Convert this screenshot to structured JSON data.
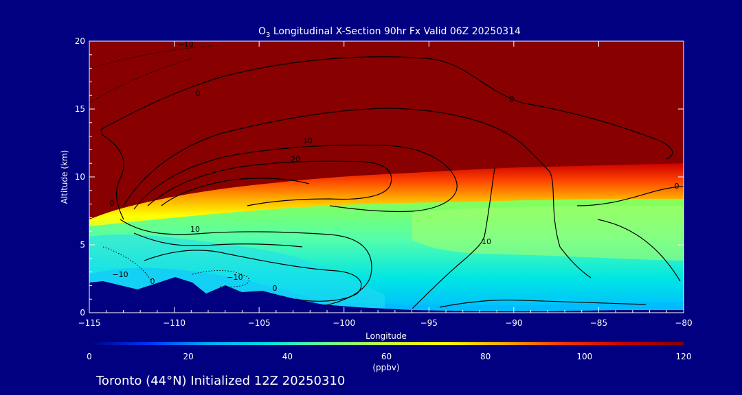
{
  "chart_data": {
    "type": "heatmap",
    "title": {
      "species_base": "O",
      "species_sub": "3",
      "rest": " Longitudinal X-Section 90hr  Fx Valid 06Z 20250314"
    },
    "xlabel": "Longitude",
    "ylabel": "Altitude (km)",
    "xlim": [
      -115,
      -80
    ],
    "ylim": [
      0,
      20
    ],
    "x_ticks": [
      -115,
      -110,
      -105,
      -100,
      -95,
      -90,
      -85,
      -80
    ],
    "x_tick_labels": [
      "−115",
      "−110",
      "−105",
      "−100",
      "−95",
      "−90",
      "−85",
      "−80"
    ],
    "y_ticks": [
      0,
      5,
      10,
      15,
      20
    ],
    "y_tick_labels": [
      "0",
      "5",
      "10",
      "15",
      "20"
    ],
    "colorbar": {
      "min": 0,
      "max": 120,
      "ticks": [
        0,
        20,
        40,
        60,
        80,
        100,
        120
      ],
      "tick_labels": [
        "0",
        "20",
        "40",
        "60",
        "80",
        "100",
        "120"
      ],
      "unit": "(ppbv)",
      "colors": [
        "#000080",
        "#0033ff",
        "#00aaff",
        "#00e5e5",
        "#66ff99",
        "#ccff33",
        "#ffff00",
        "#ffaa00",
        "#ff3300",
        "#cc0000",
        "#880000"
      ]
    },
    "contour_labels": [
      "−10",
      "0",
      "0",
      "10",
      "20",
      "0",
      "10",
      "−10",
      "0",
      "10",
      "−10",
      "0",
      "0"
    ],
    "footer": "Toronto (44°N) Initialized 12Z 20250310"
  }
}
